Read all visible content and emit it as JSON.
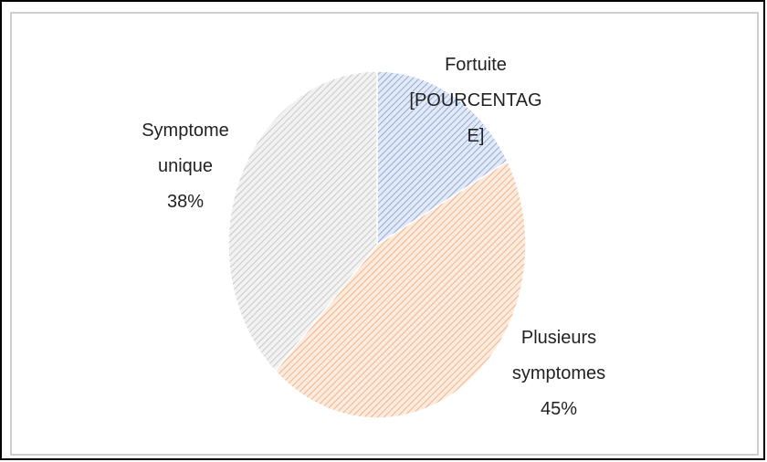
{
  "chart_data": {
    "type": "pie",
    "categories": [
      "Fortuite",
      "Plusieurs symptomes",
      "Symptome unique"
    ],
    "values": [
      17,
      45,
      38
    ],
    "value_labels": [
      "[POURCENTAGE]",
      "45%",
      "38%"
    ],
    "colors": [
      "#4472c4",
      "#ed7d31",
      "#a5a5a5"
    ]
  }
}
